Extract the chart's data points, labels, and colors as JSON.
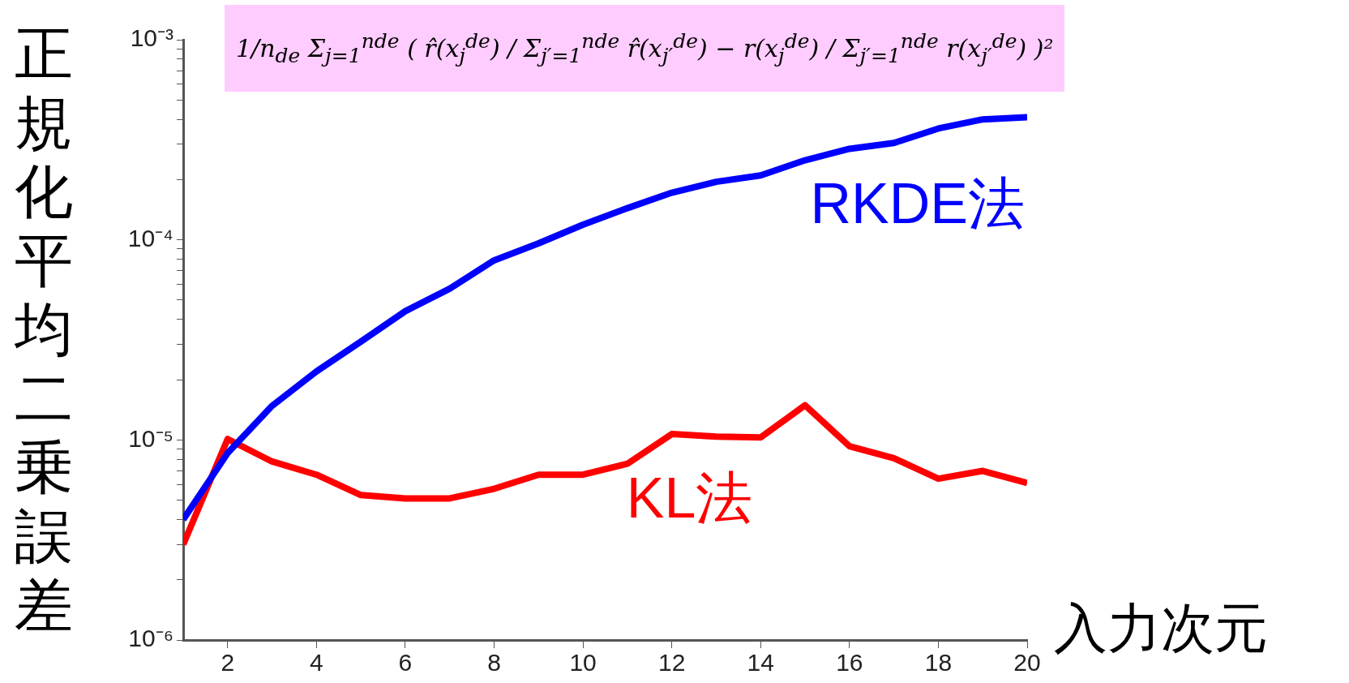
{
  "chart_data": {
    "type": "line",
    "ylabel": "正規化平均二乗誤差",
    "xlabel": "入力次元",
    "annotations": [
      "1/n$_{de}$ Σ$_{j=1}$$^{nde}$ ( r̂(x$_{j}$$^{de}$) / Σ$_{j′=1}$$^{nde}$ r̂(x$_{j′}$$^{de}$) − r(x$_{j}$$^{de}$) / Σ$_{j′=1}$$^{nde}$ r(x$_{j′}$$^{de}$) )²"
    ],
    "x": [
      1,
      2,
      3,
      4,
      5,
      6,
      7,
      8,
      9,
      10,
      11,
      12,
      13,
      14,
      15,
      16,
      17,
      18,
      19,
      20
    ],
    "series": [
      {
        "name": "RKDE法",
        "color": "#0000ff",
        "values": [
          4e-06,
          8.6e-06,
          1.48e-05,
          2.2e-05,
          3.1e-05,
          4.4e-05,
          5.7e-05,
          7.9e-05,
          9.6e-05,
          0.000119,
          0.000144,
          0.000172,
          0.000195,
          0.00021,
          0.00025,
          0.000285,
          0.000305,
          0.00036,
          0.0004,
          0.00041
        ]
      },
      {
        "name": "KL法",
        "color": "#ff0000",
        "values": [
          3e-06,
          1.01e-05,
          7.8e-06,
          6.7e-06,
          5.3e-06,
          5.1e-06,
          5.1e-06,
          5.7e-06,
          6.7e-06,
          6.7e-06,
          7.6e-06,
          1.07e-05,
          1.04e-05,
          1.03e-05,
          1.49e-05,
          9.3e-06,
          8.1e-06,
          6.4e-06,
          7e-06,
          6.1e-06
        ]
      }
    ],
    "log": "y",
    "xlim": [
      1,
      20
    ],
    "xticks": [
      2,
      4,
      6,
      8,
      10,
      12,
      14,
      16,
      18,
      20
    ],
    "ylim": [
      1e-06,
      0.001
    ],
    "yticks": [
      {
        "value": 1e-06,
        "label": "10⁻⁶"
      },
      {
        "value": 2e-06,
        "label": null
      },
      {
        "value": 3e-06,
        "label": null
      },
      {
        "value": 4e-06,
        "label": null
      },
      {
        "value": 5e-06,
        "label": null
      },
      {
        "value": 6e-06,
        "label": null
      },
      {
        "value": 7e-06,
        "label": null
      },
      {
        "value": 8e-06,
        "label": null
      },
      {
        "value": 9e-06,
        "label": null
      },
      {
        "value": 1e-05,
        "label": "10⁻⁵"
      },
      {
        "value": 2e-05,
        "label": null
      },
      {
        "value": 3e-05,
        "label": null
      },
      {
        "value": 4e-05,
        "label": null
      },
      {
        "value": 5e-05,
        "label": null
      },
      {
        "value": 6e-05,
        "label": null
      },
      {
        "value": 7e-05,
        "label": null
      },
      {
        "value": 8e-05,
        "label": null
      },
      {
        "value": 9e-05,
        "label": null
      },
      {
        "value": 0.0001,
        "label": "10⁻⁴"
      },
      {
        "value": 0.0002,
        "label": null
      },
      {
        "value": 0.0003,
        "label": null
      },
      {
        "value": 0.0004,
        "label": null
      },
      {
        "value": 0.0005,
        "label": null
      },
      {
        "value": 0.0006,
        "label": null
      },
      {
        "value": 0.0007,
        "label": null
      },
      {
        "value": 0.0008,
        "label": null
      },
      {
        "value": 0.0009,
        "label": null
      },
      {
        "value": 0.001,
        "label": "10⁻³"
      }
    ],
    "grid": false,
    "legend": false,
    "marker": "none",
    "line_style": "solid"
  }
}
